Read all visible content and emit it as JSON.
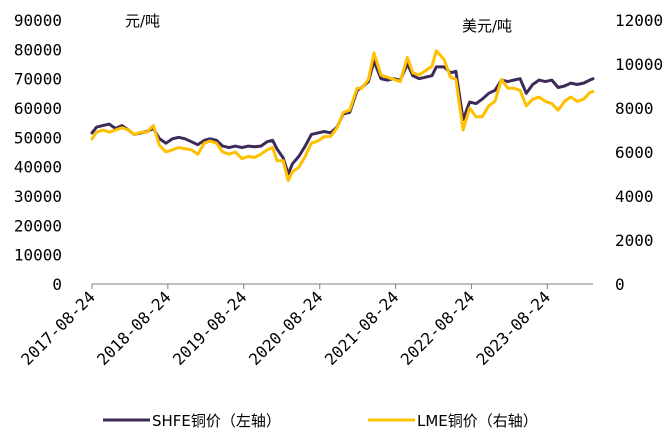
{
  "chart_data": {
    "type": "line",
    "left_unit": "元/吨",
    "right_unit": "美元/吨",
    "left_ylim": [
      0,
      90000
    ],
    "right_ylim": [
      0,
      12000
    ],
    "left_ticks": [
      "90000",
      "80000",
      "70000",
      "60000",
      "50000",
      "40000",
      "30000",
      "20000",
      "10000",
      "0"
    ],
    "right_ticks": [
      "12000",
      "10000",
      "8000",
      "6000",
      "4000",
      "2000",
      "0"
    ],
    "x_ticks": [
      "2017-08-24",
      "2018-08-24",
      "2019-08-24",
      "2020-08-24",
      "2021-08-24",
      "2022-08-24",
      "2023-08-24"
    ],
    "xlim": [
      "2017-08-24",
      "2024-03-31"
    ],
    "legend_position": "bottom",
    "grid": false,
    "series": [
      {
        "name": "SHFE铜价（左轴）",
        "axis": "left",
        "color": "#3d2a5a",
        "points": [
          [
            "2017-08-24",
            51500
          ],
          [
            "2017-09-15",
            53500
          ],
          [
            "2017-10-15",
            54000
          ],
          [
            "2017-11-15",
            54500
          ],
          [
            "2017-12-15",
            53000
          ],
          [
            "2018-01-15",
            54000
          ],
          [
            "2018-02-15",
            52500
          ],
          [
            "2018-03-15",
            51000
          ],
          [
            "2018-04-15",
            51500
          ],
          [
            "2018-05-15",
            52000
          ],
          [
            "2018-06-15",
            53000
          ],
          [
            "2018-07-15",
            49500
          ],
          [
            "2018-08-15",
            48000
          ],
          [
            "2018-09-15",
            49500
          ],
          [
            "2018-10-15",
            50000
          ],
          [
            "2018-11-15",
            49500
          ],
          [
            "2018-12-15",
            48500
          ],
          [
            "2019-01-15",
            47500
          ],
          [
            "2019-02-15",
            49000
          ],
          [
            "2019-03-15",
            49500
          ],
          [
            "2019-04-15",
            49000
          ],
          [
            "2019-05-15",
            47000
          ],
          [
            "2019-06-15",
            46500
          ],
          [
            "2019-07-15",
            47000
          ],
          [
            "2019-08-15",
            46500
          ],
          [
            "2019-09-15",
            47000
          ],
          [
            "2019-10-15",
            46800
          ],
          [
            "2019-11-15",
            47000
          ],
          [
            "2019-12-15",
            48500
          ],
          [
            "2020-01-10",
            49000
          ],
          [
            "2020-02-01",
            46000
          ],
          [
            "2020-03-01",
            43000
          ],
          [
            "2020-03-25",
            37500
          ],
          [
            "2020-04-15",
            41000
          ],
          [
            "2020-05-15",
            43500
          ],
          [
            "2020-06-15",
            47000
          ],
          [
            "2020-07-15",
            51000
          ],
          [
            "2020-08-15",
            51500
          ],
          [
            "2020-09-15",
            52000
          ],
          [
            "2020-10-15",
            51500
          ],
          [
            "2020-11-15",
            53500
          ],
          [
            "2020-12-15",
            58000
          ],
          [
            "2021-01-15",
            58500
          ],
          [
            "2021-02-20",
            66000
          ],
          [
            "2021-03-15",
            67000
          ],
          [
            "2021-04-15",
            69000
          ],
          [
            "2021-05-12",
            76000
          ],
          [
            "2021-06-15",
            70000
          ],
          [
            "2021-07-15",
            69500
          ],
          [
            "2021-08-15",
            70000
          ],
          [
            "2021-09-15",
            69500
          ],
          [
            "2021-10-20",
            75000
          ],
          [
            "2021-11-15",
            71000
          ],
          [
            "2021-12-15",
            70000
          ],
          [
            "2022-01-15",
            70500
          ],
          [
            "2022-02-15",
            71000
          ],
          [
            "2022-03-08",
            74000
          ],
          [
            "2022-04-15",
            74000
          ],
          [
            "2022-05-15",
            72000
          ],
          [
            "2022-06-10",
            72500
          ],
          [
            "2022-07-15",
            56000
          ],
          [
            "2022-08-15",
            62000
          ],
          [
            "2022-09-15",
            61500
          ],
          [
            "2022-10-15",
            63000
          ],
          [
            "2022-11-15",
            65000
          ],
          [
            "2022-12-15",
            66000
          ],
          [
            "2023-01-15",
            69500
          ],
          [
            "2023-02-15",
            69000
          ],
          [
            "2023-03-15",
            69500
          ],
          [
            "2023-04-15",
            70000
          ],
          [
            "2023-05-15",
            65000
          ],
          [
            "2023-06-15",
            68000
          ],
          [
            "2023-07-15",
            69500
          ],
          [
            "2023-08-15",
            69000
          ],
          [
            "2023-09-15",
            69500
          ],
          [
            "2023-10-15",
            67000
          ],
          [
            "2023-11-15",
            67500
          ],
          [
            "2023-12-15",
            68500
          ],
          [
            "2024-01-15",
            68000
          ],
          [
            "2024-02-15",
            68500
          ],
          [
            "2024-03-15",
            69500
          ],
          [
            "2024-03-31",
            70000
          ]
        ]
      },
      {
        "name": "LME铜价（右轴）",
        "axis": "right",
        "color": "#ffc000",
        "points": [
          [
            "2017-08-24",
            6600
          ],
          [
            "2017-09-15",
            6900
          ],
          [
            "2017-10-15",
            7000
          ],
          [
            "2017-11-15",
            6900
          ],
          [
            "2017-12-15",
            7000
          ],
          [
            "2018-01-15",
            7100
          ],
          [
            "2018-02-15",
            7000
          ],
          [
            "2018-03-15",
            6800
          ],
          [
            "2018-04-15",
            6900
          ],
          [
            "2018-05-15",
            6900
          ],
          [
            "2018-06-15",
            7200
          ],
          [
            "2018-07-15",
            6300
          ],
          [
            "2018-08-15",
            6000
          ],
          [
            "2018-09-15",
            6100
          ],
          [
            "2018-10-15",
            6200
          ],
          [
            "2018-11-15",
            6150
          ],
          [
            "2018-12-15",
            6100
          ],
          [
            "2019-01-15",
            5900
          ],
          [
            "2019-02-15",
            6400
          ],
          [
            "2019-03-15",
            6500
          ],
          [
            "2019-04-15",
            6400
          ],
          [
            "2019-05-15",
            6000
          ],
          [
            "2019-06-15",
            5900
          ],
          [
            "2019-07-15",
            6000
          ],
          [
            "2019-08-15",
            5700
          ],
          [
            "2019-09-15",
            5800
          ],
          [
            "2019-10-15",
            5750
          ],
          [
            "2019-11-15",
            5900
          ],
          [
            "2019-12-15",
            6100
          ],
          [
            "2020-01-10",
            6200
          ],
          [
            "2020-02-01",
            5600
          ],
          [
            "2020-03-01",
            5600
          ],
          [
            "2020-03-25",
            4700
          ],
          [
            "2020-04-15",
            5100
          ],
          [
            "2020-05-15",
            5300
          ],
          [
            "2020-06-15",
            5800
          ],
          [
            "2020-07-15",
            6400
          ],
          [
            "2020-08-15",
            6500
          ],
          [
            "2020-09-15",
            6700
          ],
          [
            "2020-10-15",
            6700
          ],
          [
            "2020-11-15",
            7100
          ],
          [
            "2020-12-15",
            7800
          ],
          [
            "2021-01-15",
            7900
          ],
          [
            "2021-02-20",
            8900
          ],
          [
            "2021-03-15",
            8900
          ],
          [
            "2021-04-15",
            9300
          ],
          [
            "2021-05-12",
            10500
          ],
          [
            "2021-06-15",
            9500
          ],
          [
            "2021-07-15",
            9400
          ],
          [
            "2021-08-15",
            9300
          ],
          [
            "2021-09-15",
            9200
          ],
          [
            "2021-10-20",
            10300
          ],
          [
            "2021-11-15",
            9600
          ],
          [
            "2021-12-15",
            9500
          ],
          [
            "2022-01-15",
            9700
          ],
          [
            "2022-02-15",
            9900
          ],
          [
            "2022-03-08",
            10600
          ],
          [
            "2022-04-15",
            10200
          ],
          [
            "2022-05-15",
            9400
          ],
          [
            "2022-06-10",
            9300
          ],
          [
            "2022-07-15",
            7000
          ],
          [
            "2022-08-15",
            8000
          ],
          [
            "2022-09-15",
            7600
          ],
          [
            "2022-10-15",
            7600
          ],
          [
            "2022-11-15",
            8100
          ],
          [
            "2022-12-15",
            8300
          ],
          [
            "2023-01-15",
            9300
          ],
          [
            "2023-02-15",
            8900
          ],
          [
            "2023-03-15",
            8900
          ],
          [
            "2023-04-15",
            8800
          ],
          [
            "2023-05-15",
            8100
          ],
          [
            "2023-06-15",
            8400
          ],
          [
            "2023-07-15",
            8500
          ],
          [
            "2023-08-15",
            8300
          ],
          [
            "2023-09-15",
            8200
          ],
          [
            "2023-10-15",
            7900
          ],
          [
            "2023-11-15",
            8300
          ],
          [
            "2023-12-15",
            8500
          ],
          [
            "2024-01-15",
            8300
          ],
          [
            "2024-02-15",
            8400
          ],
          [
            "2024-03-15",
            8700
          ],
          [
            "2024-03-31",
            8750
          ]
        ]
      }
    ]
  }
}
